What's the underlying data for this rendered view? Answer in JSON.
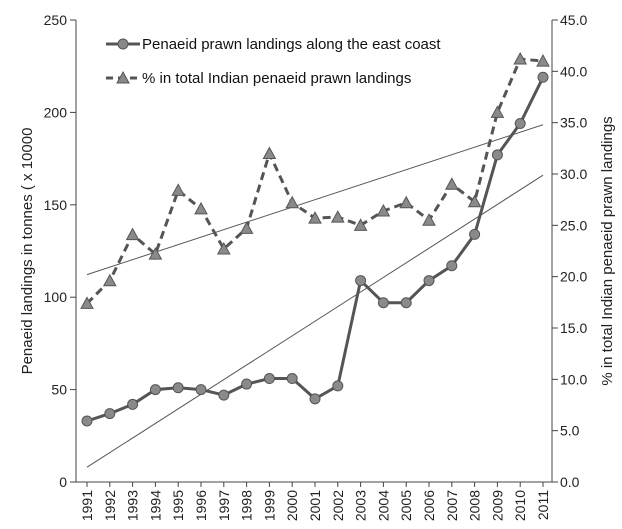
{
  "chart_data": {
    "type": "line",
    "title": "",
    "x": [
      "1991",
      "1992",
      "1993",
      "1994",
      "1995",
      "1996",
      "1997",
      "1998",
      "1999",
      "2000",
      "2001",
      "2002",
      "2003",
      "2004",
      "2005",
      "2006",
      "2007",
      "2008",
      "2009",
      "2010",
      "2011"
    ],
    "xlabel": "",
    "ylabel_left": "Penaeid landings in tonnes ( x 10000",
    "ylabel_right": "% in total Indian penaeid prawn landings",
    "ylim_left": [
      0,
      250
    ],
    "ylim_right": [
      0.0,
      45.0
    ],
    "yticks_left": [
      "0",
      "50",
      "100",
      "150",
      "200",
      "250"
    ],
    "yticks_right": [
      "0.0",
      "5.0",
      "10.0",
      "15.0",
      "20.0",
      "25.0",
      "30.0",
      "35.0",
      "40.0",
      "45.0"
    ],
    "grid": false,
    "legend_position": "top",
    "series": [
      {
        "name": "Penaeid prawn landings along the east coast",
        "axis": "left",
        "style": "solid",
        "marker": "circle",
        "color": "#555555",
        "values": [
          33,
          37,
          42,
          50,
          51,
          50,
          47,
          53,
          56,
          56,
          45,
          52,
          109,
          97,
          97,
          109,
          117,
          134,
          177,
          194,
          219
        ]
      },
      {
        "name": "% in total Indian penaeid prawn landings",
        "axis": "right",
        "style": "dashed",
        "marker": "triangle",
        "color": "#555555",
        "values": [
          17.4,
          19.6,
          24.1,
          22.2,
          28.4,
          26.6,
          22.7,
          24.7,
          32.0,
          27.2,
          25.7,
          25.8,
          25.0,
          26.4,
          27.2,
          25.5,
          29.0,
          27.3,
          36.0,
          41.2,
          41.0
        ]
      }
    ],
    "trendlines": [
      {
        "of_series": "Penaeid prawn landings along the east coast",
        "axis": "left",
        "start": 8,
        "end": 166
      },
      {
        "of_series": "% in total Indian penaeid prawn landings",
        "axis": "right",
        "start": 20.2,
        "end": 34.8
      }
    ]
  }
}
